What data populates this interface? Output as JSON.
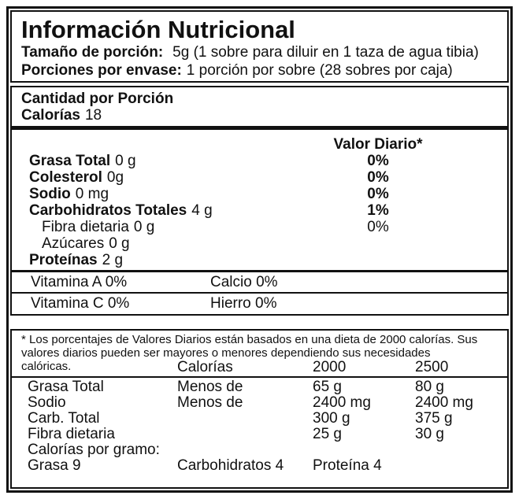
{
  "colors": {
    "ink": "#111111",
    "background": "#ffffff"
  },
  "label": {
    "title": "Información Nutricional",
    "serving": {
      "size_label": "Tamaño de porción:",
      "size_value": "5g (1 sobre para diluir en 1 taza de agua tibia)",
      "per_package_label": "Porciones por envase:",
      "per_package_value": "1 porción por sobre (28 sobres por caja)"
    },
    "amount_per_serving": "Cantidad por Porción",
    "calories": {
      "label": "Calorías",
      "value": "18"
    },
    "daily_value_header": "Valor Diario*",
    "nutrients": [
      {
        "name": "Grasa Total",
        "amount": "0 g",
        "dv": "0%"
      },
      {
        "name": "Colesterol",
        "amount": "0g",
        "dv": "0%"
      },
      {
        "name": "Sodio",
        "amount": "0 mg",
        "dv": "0%"
      },
      {
        "name": "Carbohidratos Totales",
        "amount": "4 g",
        "dv": "1%"
      },
      {
        "name": "Fibra dietaria",
        "amount": "0 g",
        "dv": "0%"
      },
      {
        "name": "Azúcares",
        "amount": "0 g",
        "dv": ""
      },
      {
        "name": "Proteínas",
        "amount": "2 g",
        "dv": ""
      }
    ],
    "micronutrients": [
      {
        "left": "Vitamina A 0%",
        "right": "Calcio 0%"
      },
      {
        "left": "Vitamina C 0%",
        "right": "Hierro 0%"
      }
    ],
    "footnote": {
      "text": "* Los porcentajes de Valores Diarios están basados en una dieta de 2000 calorías. Sus valores diarios pueden ser mayores o menores dependiendo sus necesidades",
      "continuation": "calóricas."
    },
    "reference_table": {
      "columns": [
        "Calorías",
        "2000",
        "2500"
      ],
      "rows": [
        {
          "name": "Grasa Total",
          "qualifier": "Menos de",
          "v2000": "65 g",
          "v2500": "80 g"
        },
        {
          "name": "Sodio",
          "qualifier": "Menos de",
          "v2000": "2400 mg",
          "v2500": "2400 mg"
        },
        {
          "name": "Carb. Total",
          "qualifier": "",
          "v2000": "300 g",
          "v2500": "375 g"
        },
        {
          "name": "Fibra dietaria",
          "qualifier": "",
          "v2000": "25 g",
          "v2500": "30 g"
        }
      ]
    },
    "calories_per_gram": {
      "label": "Calorías por gramo:",
      "fat": "Grasa 9",
      "carbs": "Carbohidratos 4",
      "protein": "Proteína 4"
    }
  }
}
